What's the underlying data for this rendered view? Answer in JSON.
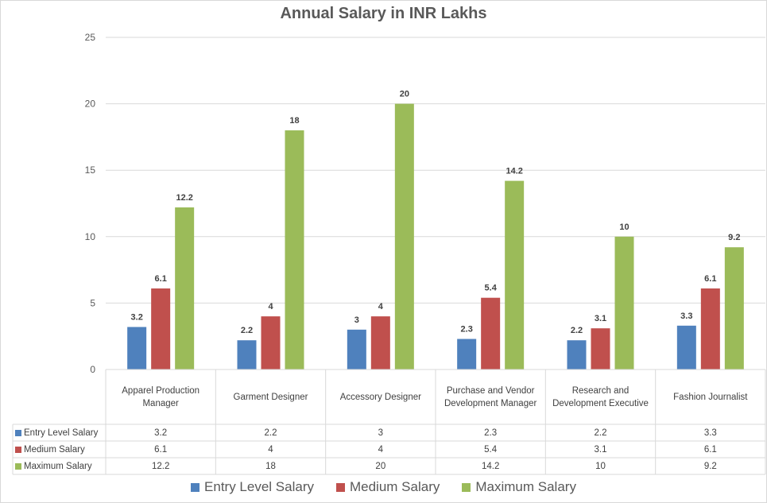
{
  "chart_data": {
    "type": "bar",
    "title": "Annual Salary in INR Lakhs",
    "xlabel": "",
    "ylabel": "",
    "ylim": [
      0,
      25
    ],
    "yticks": [
      0,
      5,
      10,
      15,
      20,
      25
    ],
    "ytick_labels": [
      "0",
      "5",
      "10",
      "15",
      "20",
      "25"
    ],
    "grid": true,
    "legend_position": "bottom",
    "categories": [
      "Apparel Production Manager",
      "Garment Designer",
      "Accessory Designer",
      "Purchase and Vendor Development Manager",
      "Research and Development Executive",
      "Fashion Journalist"
    ],
    "series": [
      {
        "name": "Entry Level Salary",
        "color": "#4F81BD",
        "values": [
          3.2,
          2.2,
          3,
          2.3,
          2.2,
          3.3
        ],
        "labels": [
          "3.2",
          "2.2",
          "3",
          "2.3",
          "2.2",
          "3.3"
        ]
      },
      {
        "name": "Medium Salary",
        "color": "#C0504D",
        "values": [
          6.1,
          4,
          4,
          5.4,
          3.1,
          6.1
        ],
        "labels": [
          "6.1",
          "4",
          "4",
          "5.4",
          "3.1",
          "6.1"
        ]
      },
      {
        "name": "Maximum Salary",
        "color": "#9BBB59",
        "values": [
          12.2,
          18,
          20,
          14.2,
          10,
          9.2
        ],
        "labels": [
          "12.2",
          "18",
          "20",
          "14.2",
          "10",
          "9.2"
        ]
      }
    ],
    "data_table": true
  }
}
